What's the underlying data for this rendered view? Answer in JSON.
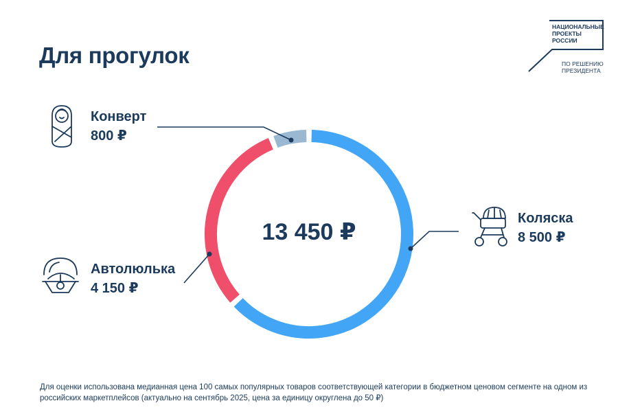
{
  "title": "Для прогулок",
  "logo": {
    "main_text": "НАЦИОНАЛЬНЫЕ ПРОЕКТЫ РОССИИ",
    "sub_text": "ПО РЕШЕНИЮ ПРЕЗИДЕНТА"
  },
  "total": "13 450 ₽",
  "items": [
    {
      "name": "Коляска",
      "price": "8 500 ₽",
      "icon": "stroller-icon"
    },
    {
      "name": "Автолюлька",
      "price": "4 150 ₽",
      "icon": "infant-car-seat-icon"
    },
    {
      "name": "Конверт",
      "price": "800 ₽",
      "icon": "swaddled-baby-icon"
    }
  ],
  "footnote": "Для оценки использована медианная цена 100 самых популярных товаров соответствующей категории в бюджетном ценовом сегменте на одном из российских маркетплейсов (актуально на сентябрь 2025, цена за единицу округлена до 50 ₽)",
  "colors": {
    "stroller": "#42a5f5",
    "car_seat": "#ef4f6a",
    "envelope": "#9ab8d2",
    "text": "#1b3a5c"
  },
  "chart_data": {
    "type": "pie",
    "categories": [
      "Коляска",
      "Автолюлька",
      "Конверт"
    ],
    "values": [
      8500,
      4150,
      800
    ],
    "total": 13450,
    "unit": "₽"
  }
}
